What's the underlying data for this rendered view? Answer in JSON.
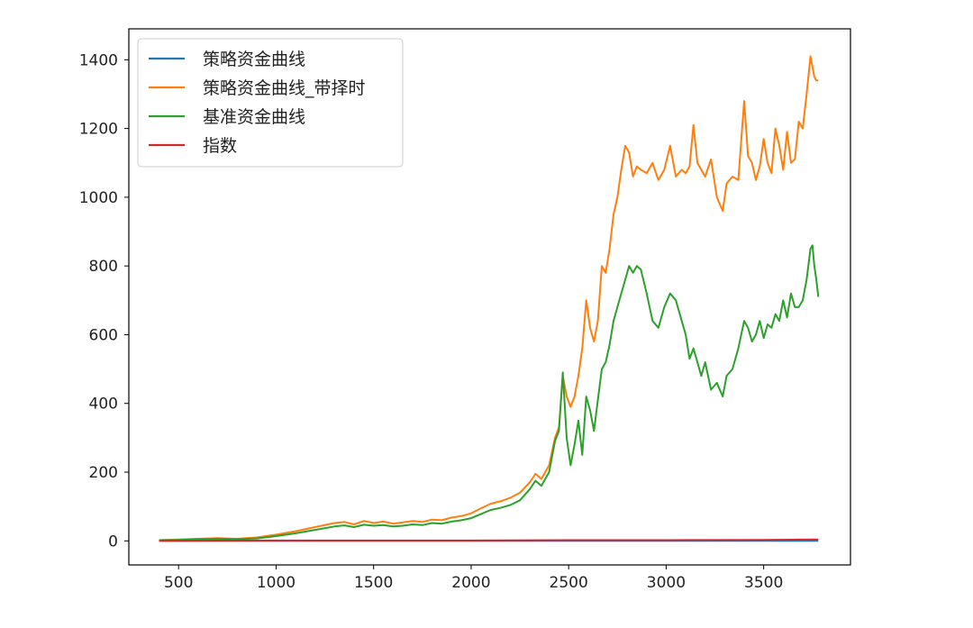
{
  "chart_data": {
    "type": "line",
    "xlim": [
      245,
      3945
    ],
    "ylim": [
      -70,
      1490
    ],
    "xticks": [
      500,
      1000,
      1500,
      2000,
      2500,
      3000,
      3500
    ],
    "yticks": [
      0,
      200,
      400,
      600,
      800,
      1000,
      1200,
      1400
    ],
    "legend_position": "top-left",
    "grid": false,
    "series": [
      {
        "name": "策略资金曲线",
        "color": "#1f77b4",
        "x": [
          400,
          3780
        ],
        "y": [
          0,
          0
        ]
      },
      {
        "name": "策略资金曲线_带择时",
        "color": "#ff7f0e",
        "x": [
          400,
          500,
          600,
          700,
          800,
          900,
          1000,
          1100,
          1200,
          1300,
          1350,
          1400,
          1450,
          1500,
          1550,
          1600,
          1650,
          1700,
          1750,
          1800,
          1850,
          1900,
          1950,
          2000,
          2050,
          2100,
          2150,
          2200,
          2250,
          2300,
          2330,
          2360,
          2400,
          2430,
          2450,
          2470,
          2490,
          2510,
          2530,
          2550,
          2570,
          2590,
          2610,
          2630,
          2650,
          2670,
          2690,
          2710,
          2730,
          2750,
          2770,
          2790,
          2810,
          2830,
          2850,
          2870,
          2900,
          2930,
          2960,
          2990,
          3020,
          3050,
          3080,
          3100,
          3120,
          3140,
          3160,
          3180,
          3200,
          3230,
          3260,
          3290,
          3310,
          3340,
          3370,
          3400,
          3420,
          3440,
          3460,
          3480,
          3500,
          3520,
          3540,
          3560,
          3580,
          3600,
          3620,
          3640,
          3660,
          3680,
          3700,
          3720,
          3740,
          3750,
          3760,
          3770,
          3780
        ],
        "y": [
          2,
          4,
          6,
          8,
          6,
          10,
          18,
          28,
          40,
          52,
          55,
          48,
          58,
          52,
          56,
          50,
          54,
          58,
          55,
          62,
          60,
          68,
          72,
          80,
          95,
          108,
          115,
          125,
          140,
          170,
          195,
          180,
          220,
          300,
          330,
          480,
          420,
          390,
          420,
          480,
          560,
          700,
          620,
          580,
          640,
          800,
          780,
          850,
          950,
          1000,
          1080,
          1150,
          1130,
          1060,
          1090,
          1080,
          1070,
          1100,
          1050,
          1080,
          1150,
          1060,
          1080,
          1070,
          1090,
          1210,
          1100,
          1080,
          1060,
          1110,
          1000,
          960,
          1040,
          1060,
          1050,
          1280,
          1120,
          1100,
          1050,
          1090,
          1170,
          1100,
          1070,
          1200,
          1150,
          1080,
          1190,
          1100,
          1110,
          1220,
          1200,
          1300,
          1410,
          1380,
          1350,
          1340,
          1340
        ]
      },
      {
        "name": "基准资金曲线",
        "color": "#2ca02c",
        "x": [
          400,
          500,
          600,
          700,
          800,
          900,
          1000,
          1100,
          1200,
          1300,
          1350,
          1400,
          1450,
          1500,
          1550,
          1600,
          1650,
          1700,
          1750,
          1800,
          1850,
          1900,
          1950,
          2000,
          2050,
          2100,
          2150,
          2200,
          2250,
          2300,
          2330,
          2360,
          2400,
          2430,
          2450,
          2470,
          2490,
          2510,
          2530,
          2550,
          2570,
          2590,
          2610,
          2630,
          2650,
          2670,
          2690,
          2710,
          2730,
          2750,
          2770,
          2790,
          2810,
          2830,
          2850,
          2870,
          2900,
          2930,
          2960,
          2990,
          3020,
          3050,
          3080,
          3100,
          3120,
          3140,
          3160,
          3180,
          3200,
          3230,
          3260,
          3290,
          3310,
          3340,
          3370,
          3400,
          3420,
          3440,
          3460,
          3480,
          3500,
          3520,
          3540,
          3560,
          3580,
          3600,
          3620,
          3640,
          3660,
          3680,
          3700,
          3720,
          3740,
          3750,
          3760,
          3770,
          3780
        ],
        "y": [
          2,
          3,
          5,
          6,
          5,
          7,
          14,
          22,
          32,
          42,
          45,
          40,
          47,
          44,
          46,
          42,
          44,
          48,
          46,
          52,
          50,
          56,
          60,
          66,
          78,
          90,
          96,
          104,
          118,
          150,
          175,
          160,
          200,
          290,
          320,
          490,
          300,
          220,
          280,
          350,
          250,
          420,
          380,
          320,
          410,
          500,
          520,
          570,
          640,
          680,
          720,
          760,
          800,
          780,
          800,
          790,
          720,
          640,
          620,
          680,
          720,
          700,
          640,
          600,
          530,
          560,
          520,
          480,
          520,
          440,
          460,
          420,
          480,
          500,
          560,
          640,
          620,
          580,
          600,
          640,
          590,
          630,
          620,
          660,
          640,
          700,
          650,
          720,
          680,
          680,
          700,
          760,
          850,
          860,
          800,
          760,
          710
        ]
      },
      {
        "name": "指数",
        "color": "#d62728",
        "x": [
          400,
          1000,
          1500,
          2000,
          2500,
          3000,
          3500,
          3780
        ],
        "y": [
          0,
          1,
          1,
          1,
          2,
          2,
          3,
          4
        ]
      }
    ]
  }
}
